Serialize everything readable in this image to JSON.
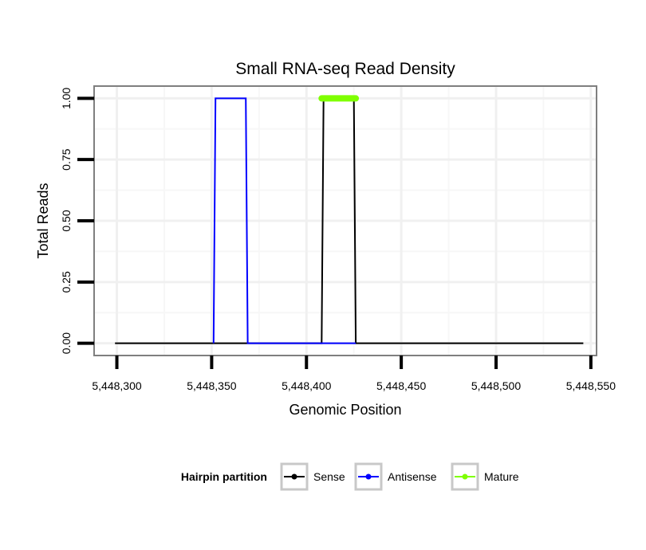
{
  "chart_data": {
    "type": "line",
    "title": "Small RNA-seq Read Density",
    "xlabel": "Genomic Position",
    "ylabel": "Total Reads",
    "xlim": [
      5448288,
      5448553
    ],
    "ylim": [
      -0.05,
      1.05
    ],
    "x_ticks": [
      5448300,
      5448350,
      5448400,
      5448450,
      5448500,
      5448550
    ],
    "x_tick_labels": [
      "5,448,300",
      "5,448,350",
      "5,448,400",
      "5,448,450",
      "5,448,500",
      "5,448,550"
    ],
    "y_ticks": [
      0,
      0.25,
      0.5,
      0.75,
      1.0
    ],
    "y_tick_labels": [
      "0.00",
      "0.25",
      "0.50",
      "0.75",
      "1.00"
    ],
    "grid": true,
    "series": [
      {
        "name": "Sense",
        "color": "#000000",
        "x": [
          5448299,
          5448408,
          5448409,
          5448425,
          5448426,
          5448546
        ],
        "values": [
          0,
          0,
          1,
          1,
          0,
          0
        ]
      },
      {
        "name": "Antisense",
        "color": "#0000ff",
        "x": [
          5448351,
          5448352,
          5448368,
          5448369,
          5448408,
          5448426
        ],
        "values": [
          0,
          1,
          1,
          0,
          0,
          0
        ]
      },
      {
        "name": "Mature",
        "color": "#7fff00",
        "x": [
          5448408,
          5448426
        ],
        "values": [
          1,
          1
        ]
      }
    ],
    "legend": {
      "title": "Hairpin partition",
      "position": "bottom",
      "entries": [
        "Sense",
        "Antisense",
        "Mature"
      ]
    }
  }
}
